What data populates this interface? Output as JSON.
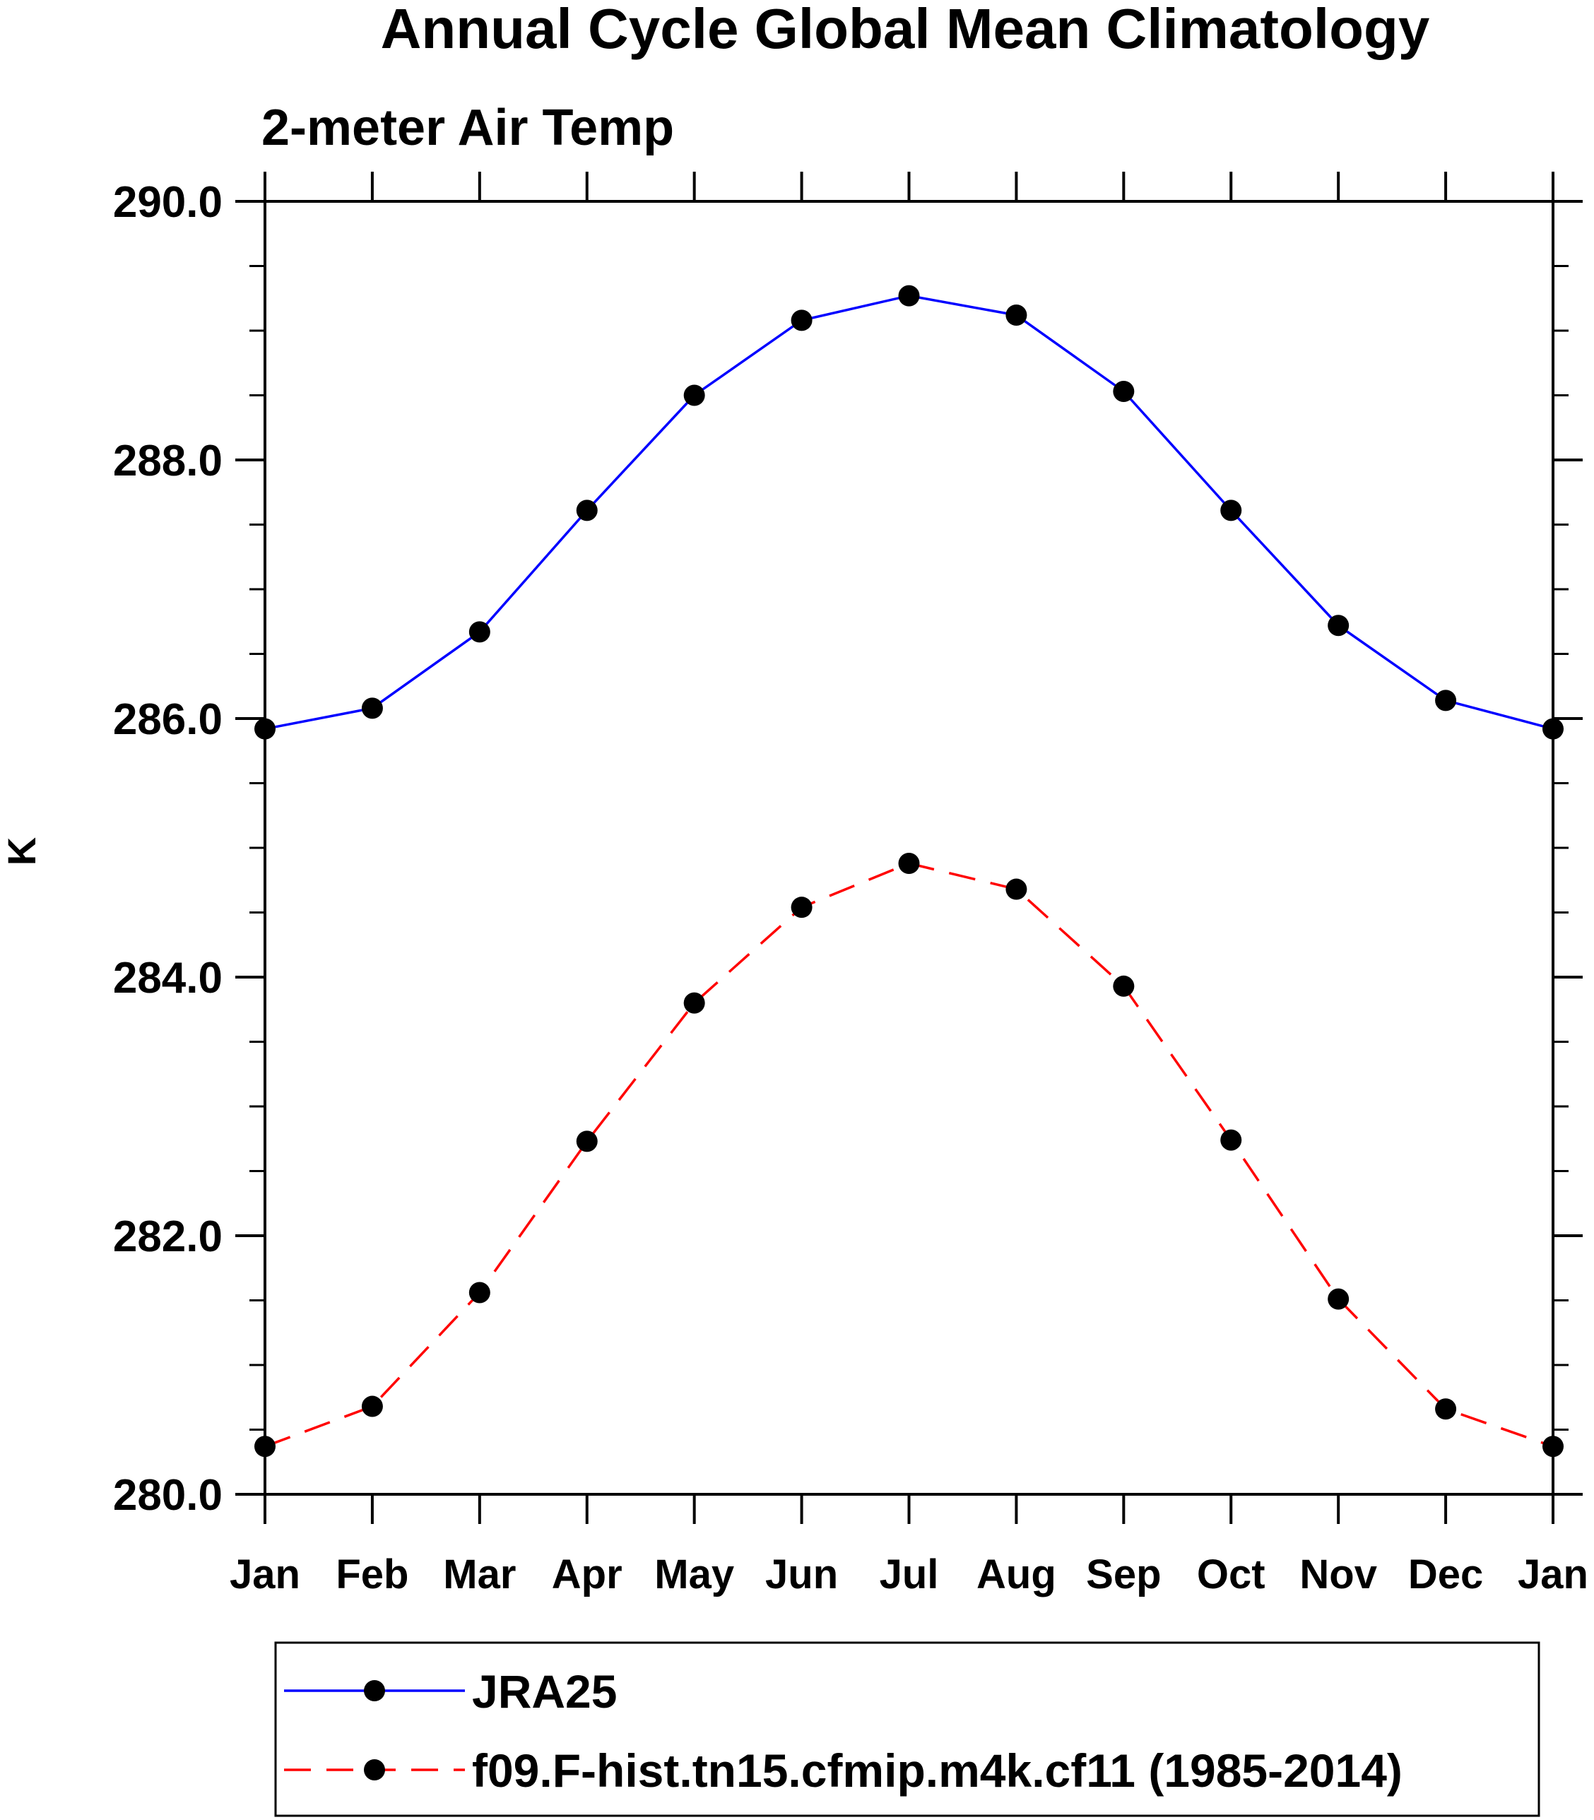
{
  "chart_data": {
    "type": "line",
    "title": "Annual Cycle Global Mean Climatology",
    "subtitle": "2-meter Air Temp",
    "xlabel": "",
    "ylabel": "K",
    "categories": [
      "Jan",
      "Feb",
      "Mar",
      "Apr",
      "May",
      "Jun",
      "Jul",
      "Aug",
      "Sep",
      "Oct",
      "Nov",
      "Dec",
      "Jan"
    ],
    "ylim": [
      280.0,
      290.0
    ],
    "yticks": [
      "280.0",
      "282.0",
      "284.0",
      "286.0",
      "288.0",
      "290.0"
    ],
    "ytick_values": [
      280,
      282,
      284,
      286,
      288,
      290
    ],
    "yminor_step": 0.5,
    "legend_position": "bottom",
    "series": [
      {
        "name": "JRA25",
        "color": "#0000ff",
        "line_style": "solid",
        "values": [
          285.92,
          286.08,
          286.67,
          287.61,
          288.5,
          289.08,
          289.27,
          289.12,
          288.53,
          287.61,
          286.72,
          286.14,
          285.92
        ]
      },
      {
        "name": "f09.F-hist.tn15.cfmip.m4k.cf11 (1985-2014)",
        "color": "#ff0000",
        "line_style": "dashed",
        "values": [
          280.37,
          280.68,
          281.56,
          282.73,
          283.8,
          284.54,
          284.88,
          284.68,
          283.93,
          282.74,
          281.51,
          280.66,
          280.37
        ]
      }
    ]
  }
}
